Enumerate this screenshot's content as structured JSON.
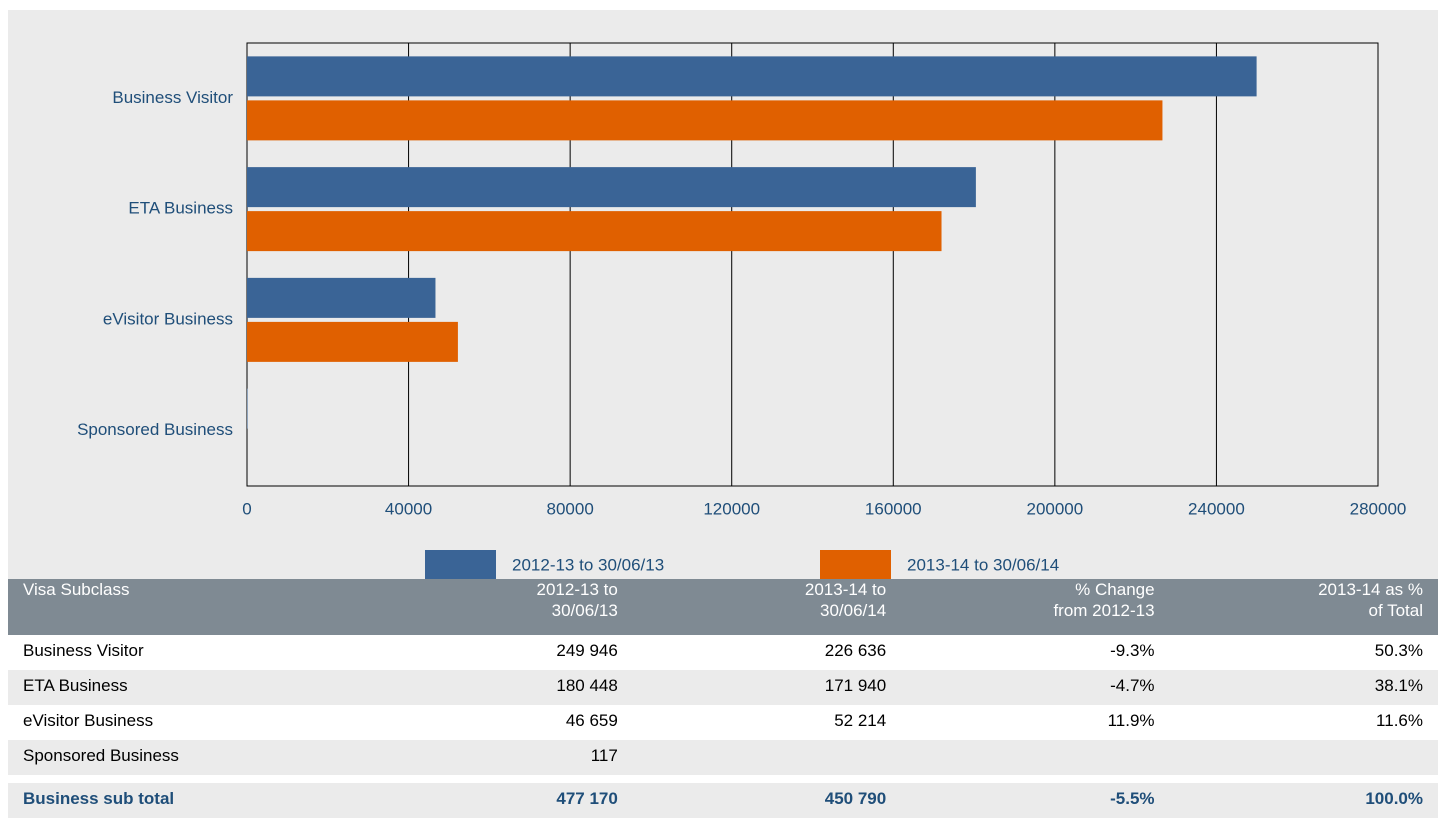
{
  "chart_data": {
    "type": "hbar",
    "categories": [
      "Business Visitor",
      "ETA Business",
      "eVisitor Business",
      "Sponsored Business"
    ],
    "series": [
      {
        "name": "2012-13 to 30/06/13",
        "color": "#3a6496",
        "values": [
          249946,
          180448,
          46659,
          117
        ]
      },
      {
        "name": "2013-14 to 30/06/14",
        "color": "#e06000",
        "values": [
          226636,
          171940,
          52214,
          null
        ]
      }
    ],
    "xlim": [
      0,
      280000
    ],
    "xticks": [
      0,
      40000,
      80000,
      120000,
      160000,
      200000,
      240000,
      280000
    ],
    "grid": true
  },
  "table": {
    "columns": [
      "Visa Subclass",
      "2012-13 to 30/06/13",
      "2013-14 to 30/06/14",
      "% Change from 2012-13",
      "2013-14 as % of Total"
    ],
    "rows": [
      [
        "Business Visitor",
        "249 946",
        "226 636",
        "-9.3%",
        "50.3%"
      ],
      [
        "ETA Business",
        "180 448",
        "171 940",
        "-4.7%",
        "38.1%"
      ],
      [
        "eVisitor Business",
        "46 659",
        "52 214",
        "11.9%",
        "11.6%"
      ],
      [
        "Sponsored Business",
        "117",
        null,
        null,
        null
      ]
    ],
    "total": [
      "Business sub total",
      "477 170",
      "450 790",
      "-5.5%",
      "100.0%"
    ]
  }
}
